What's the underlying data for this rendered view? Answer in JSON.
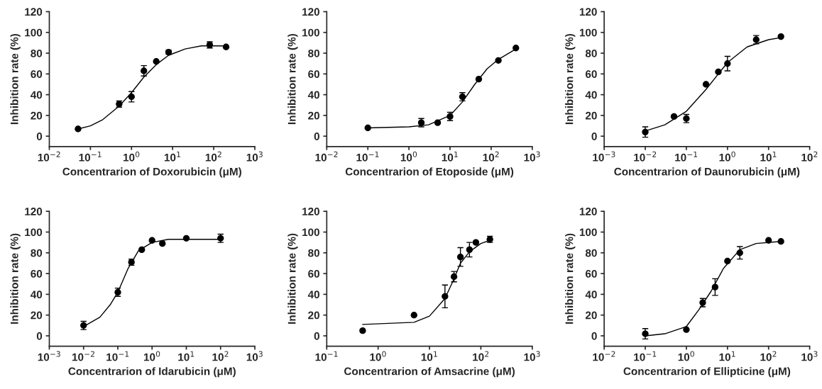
{
  "chart_data": [
    {
      "type": "scatter",
      "xlabel": "Concentrarion of Doxorubicin (μM)",
      "ylabel": "Inhibition rate (%)",
      "log": "x",
      "xlim": [
        0.01,
        1000
      ],
      "xticks": [
        {
          "value": 0.01,
          "label": "10$^{−2}$"
        },
        {
          "value": 0.1,
          "label": "10$^{−1}$"
        },
        {
          "value": 1,
          "label": "10$^{0}$"
        },
        {
          "value": 10,
          "label": "10$^{1}$"
        },
        {
          "value": 100,
          "label": "10$^{2}$"
        },
        {
          "value": 1000,
          "label": "10$^{3}$"
        }
      ],
      "ylim": [
        -10,
        120
      ],
      "yticks": [
        0,
        20,
        40,
        60,
        80,
        100,
        120
      ],
      "grid": false,
      "series": [
        {
          "marker": "circle",
          "color": "#000000",
          "x": [
            0.05,
            0.5,
            1,
            2,
            4,
            8,
            80,
            200
          ],
          "values": [
            7,
            31,
            38,
            63,
            72,
            81,
            88,
            86
          ],
          "errors": [
            null,
            3,
            5,
            5,
            null,
            2,
            3,
            null
          ]
        },
        {
          "type": "line",
          "marker": "none",
          "color": "#000000",
          "line_style": "solid",
          "x": [
            0.05,
            0.1,
            0.2,
            0.5,
            1,
            2,
            4,
            8,
            20,
            50,
            200
          ],
          "values": [
            7,
            10,
            16,
            29,
            42,
            57,
            69,
            78,
            84,
            87,
            87
          ]
        }
      ]
    },
    {
      "type": "scatter",
      "xlabel": "Concentrarion of Etoposide (μM)",
      "ylabel": "Inhibition rate (%)",
      "log": "x",
      "xlim": [
        0.01,
        1000
      ],
      "xticks": [
        {
          "value": 0.01,
          "label": "10$^{−2}$"
        },
        {
          "value": 0.1,
          "label": "10$^{−1}$"
        },
        {
          "value": 1,
          "label": "10$^{0}$"
        },
        {
          "value": 10,
          "label": "10$^{1}$"
        },
        {
          "value": 100,
          "label": "10$^{2}$"
        },
        {
          "value": 1000,
          "label": "10$^{3}$"
        }
      ],
      "ylim": [
        -10,
        120
      ],
      "yticks": [
        0,
        20,
        40,
        60,
        80,
        100,
        120
      ],
      "grid": false,
      "series": [
        {
          "marker": "circle",
          "color": "#000000",
          "x": [
            0.1,
            2,
            5,
            10,
            20,
            50,
            150,
            400
          ],
          "values": [
            8,
            13,
            13,
            19,
            38,
            55,
            73,
            85
          ],
          "errors": [
            null,
            4,
            null,
            4,
            4,
            null,
            null,
            null
          ]
        },
        {
          "type": "line",
          "marker": "none",
          "color": "#000000",
          "line_style": "solid",
          "x": [
            0.1,
            1,
            3,
            10,
            20,
            40,
            80,
            150,
            400
          ],
          "values": [
            8,
            9,
            11,
            20,
            33,
            50,
            65,
            74,
            84
          ]
        }
      ]
    },
    {
      "type": "scatter",
      "xlabel": "Concentrarion of Daunorubicin (μM)",
      "ylabel": "Inhibition rate (%)",
      "log": "x",
      "xlim": [
        0.001,
        100
      ],
      "xticks": [
        {
          "value": 0.001,
          "label": "10$^{−3}$"
        },
        {
          "value": 0.01,
          "label": "10$^{−2}$"
        },
        {
          "value": 0.1,
          "label": "10$^{−1}$"
        },
        {
          "value": 1,
          "label": "10$^{0}$"
        },
        {
          "value": 10,
          "label": "10$^{1}$"
        },
        {
          "value": 100,
          "label": "10$^{2}$"
        }
      ],
      "ylim": [
        -10,
        120
      ],
      "yticks": [
        0,
        20,
        40,
        60,
        80,
        100,
        120
      ],
      "grid": false,
      "series": [
        {
          "marker": "circle",
          "color": "#000000",
          "x": [
            0.01,
            0.05,
            0.1,
            0.3,
            0.6,
            1,
            5,
            20
          ],
          "values": [
            4,
            19,
            17,
            50,
            62,
            70,
            93,
            96
          ],
          "errors": [
            5,
            null,
            4,
            null,
            null,
            7,
            4,
            null
          ]
        },
        {
          "type": "line",
          "marker": "none",
          "color": "#000000",
          "line_style": "solid",
          "x": [
            0.01,
            0.03,
            0.1,
            0.3,
            0.6,
            1,
            3,
            10,
            20
          ],
          "values": [
            5,
            11,
            24,
            45,
            60,
            71,
            86,
            93,
            95
          ]
        }
      ]
    },
    {
      "type": "scatter",
      "xlabel": "Concentrarion of Idarubicin (μM)",
      "ylabel": "Inhibition rate (%)",
      "log": "x",
      "xlim": [
        0.001,
        1000
      ],
      "xticks": [
        {
          "value": 0.001,
          "label": "10$^{−3}$"
        },
        {
          "value": 0.01,
          "label": "10$^{−2}$"
        },
        {
          "value": 0.1,
          "label": "10$^{−1}$"
        },
        {
          "value": 1,
          "label": "10$^{0}$"
        },
        {
          "value": 10,
          "label": "10$^{1}$"
        },
        {
          "value": 100,
          "label": "10$^{2}$"
        },
        {
          "value": 1000,
          "label": "10$^{3}$"
        }
      ],
      "ylim": [
        -10,
        120
      ],
      "yticks": [
        0,
        20,
        40,
        60,
        80,
        100,
        120
      ],
      "grid": false,
      "series": [
        {
          "marker": "circle",
          "color": "#000000",
          "x": [
            0.01,
            0.1,
            0.25,
            0.5,
            1,
            2,
            10,
            100
          ],
          "values": [
            10,
            42,
            71,
            83,
            92,
            89,
            94,
            94
          ],
          "errors": [
            4,
            4,
            3,
            null,
            null,
            null,
            null,
            4
          ]
        },
        {
          "type": "line",
          "marker": "none",
          "color": "#000000",
          "line_style": "solid",
          "x": [
            0.01,
            0.03,
            0.06,
            0.1,
            0.2,
            0.4,
            1,
            3,
            100
          ],
          "values": [
            9,
            18,
            30,
            42,
            65,
            82,
            90,
            93,
            93
          ]
        }
      ]
    },
    {
      "type": "scatter",
      "xlabel": "Concentrarion of Amsacrine (μM)",
      "ylabel": "Inhibition rate (%)",
      "log": "x",
      "xlim": [
        0.1,
        1000
      ],
      "xticks": [
        {
          "value": 0.1,
          "label": "10$^{−1}$"
        },
        {
          "value": 1,
          "label": "10$^{0}$"
        },
        {
          "value": 10,
          "label": "10$^{1}$"
        },
        {
          "value": 100,
          "label": "10$^{2}$"
        },
        {
          "value": 1000,
          "label": "10$^{3}$"
        }
      ],
      "ylim": [
        -10,
        120
      ],
      "yticks": [
        0,
        20,
        40,
        60,
        80,
        100,
        120
      ],
      "grid": false,
      "series": [
        {
          "marker": "circle",
          "color": "#000000",
          "x": [
            0.5,
            5,
            20,
            30,
            40,
            60,
            80,
            150
          ],
          "values": [
            5,
            20,
            38,
            57,
            76,
            83,
            90,
            93
          ],
          "errors": [
            null,
            null,
            11,
            5,
            9,
            7,
            null,
            3
          ]
        },
        {
          "type": "line",
          "marker": "none",
          "color": "#000000",
          "line_style": "solid",
          "x": [
            0.5,
            5,
            10,
            20,
            30,
            40,
            60,
            100,
            150
          ],
          "values": [
            11,
            13,
            19,
            36,
            55,
            70,
            81,
            89,
            92
          ]
        }
      ]
    },
    {
      "type": "scatter",
      "xlabel": "Concentrarion of Ellipticine (μM)",
      "ylabel": "Inhibition rate (%)",
      "log": "x",
      "xlim": [
        0.01,
        1000
      ],
      "xticks": [
        {
          "value": 0.01,
          "label": "10$^{−2}$"
        },
        {
          "value": 0.1,
          "label": "10$^{−1}$"
        },
        {
          "value": 1,
          "label": "10$^{0}$"
        },
        {
          "value": 10,
          "label": "10$^{1}$"
        },
        {
          "value": 100,
          "label": "10$^{2}$"
        },
        {
          "value": 1000,
          "label": "10$^{3}$"
        }
      ],
      "ylim": [
        -10,
        120
      ],
      "yticks": [
        0,
        20,
        40,
        60,
        80,
        100,
        120
      ],
      "grid": false,
      "series": [
        {
          "marker": "circle",
          "color": "#000000",
          "x": [
            0.1,
            1,
            2.5,
            5,
            10,
            20,
            100,
            200
          ],
          "values": [
            2,
            6,
            32,
            47,
            72,
            80,
            92,
            91
          ],
          "errors": [
            5,
            null,
            4,
            8,
            null,
            6,
            null,
            null
          ]
        },
        {
          "type": "line",
          "marker": "none",
          "color": "#000000",
          "line_style": "solid",
          "x": [
            0.1,
            0.3,
            1,
            2,
            4,
            8,
            20,
            50,
            200
          ],
          "values": [
            0,
            2,
            9,
            25,
            43,
            65,
            83,
            89,
            91
          ]
        }
      ]
    }
  ]
}
